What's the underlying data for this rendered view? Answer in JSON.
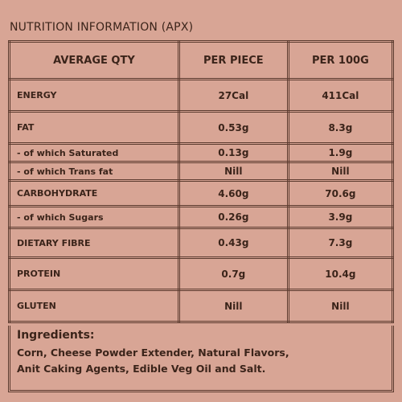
{
  "title": "NUTRITION INFORMATION (APX)",
  "table": {
    "header": [
      "AVERAGE QTY",
      "PER PIECE",
      "PER 100G"
    ],
    "rows": [
      [
        "ENERGY",
        "27Cal",
        "411Cal"
      ],
      [
        "FAT",
        "0.53g",
        "8.3g"
      ],
      [
        "- of which Saturated",
        "0.13g",
        "1.9g"
      ],
      [
        "- of which Trans fat",
        "Nill",
        "Nill"
      ],
      [
        "CARBOHYDRATE",
        "4.60g",
        "70.6g"
      ],
      [
        "- of which Sugars",
        "0.26g",
        "3.9g"
      ],
      [
        "DIETARY FIBRE",
        "0.43g",
        "7.3g"
      ],
      [
        "PROTEIN",
        "0.7g",
        "10.4g"
      ],
      [
        "GLUTEN",
        "Nill",
        "Nill"
      ]
    ]
  },
  "ingredients": {
    "heading": "Ingredients:",
    "lines": [
      "Corn, Cheese Powder Extender, Natural Flavors,",
      "Anit Caking Agents, Edible Veg Oil and Salt."
    ]
  }
}
